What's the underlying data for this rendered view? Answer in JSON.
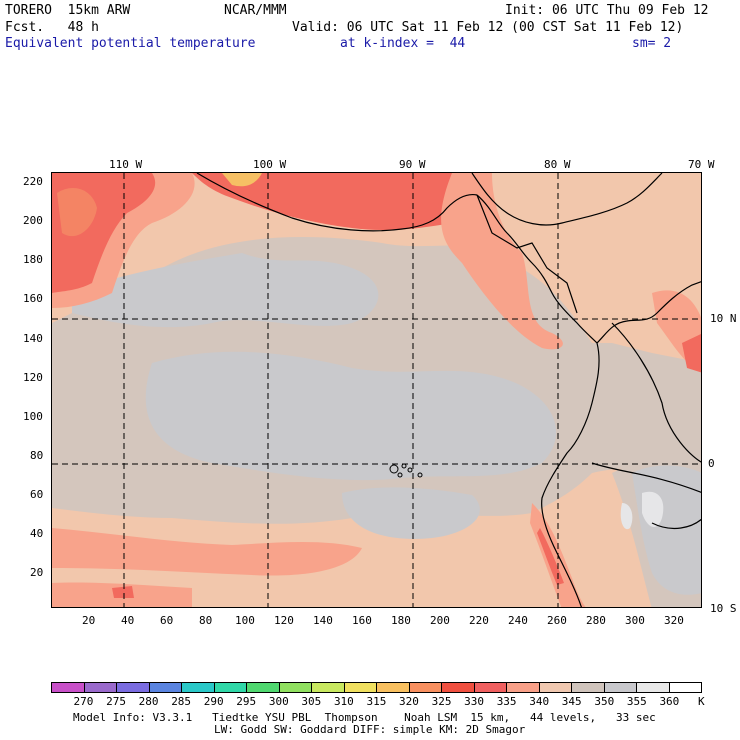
{
  "header": {
    "model": "TORERO  15km ARW",
    "org": "NCAR/MMM",
    "init": "Init: 06 UTC Thu 09 Feb 12",
    "fcst": "Fcst.   48 h",
    "valid": "Valid: 06 UTC Sat 11 Feb 12 (00 CST Sat 11 Feb 12)",
    "field": "Equivalent potential temperature",
    "level": "at k-index =  44",
    "smooth": "sm= 2"
  },
  "map": {
    "top_lon_labels": [
      "110 W",
      "100 W",
      "90 W",
      "80 W",
      "70 W"
    ],
    "right_lat_labels": [
      "10 N",
      "0",
      "10 S"
    ],
    "left_y_ticks": [
      "20",
      "40",
      "60",
      "80",
      "100",
      "120",
      "140",
      "160",
      "180",
      "200",
      "220"
    ],
    "bottom_x_ticks": [
      "20",
      "40",
      "60",
      "80",
      "100",
      "120",
      "140",
      "160",
      "180",
      "200",
      "220",
      "240",
      "260",
      "280",
      "300",
      "320"
    ]
  },
  "colorbar": {
    "labels": [
      "270",
      "275",
      "280",
      "285",
      "290",
      "295",
      "300",
      "305",
      "310",
      "315",
      "320",
      "325",
      "330",
      "335",
      "340",
      "345",
      "350",
      "355",
      "360",
      "K"
    ],
    "colors": [
      "#c850c8",
      "#9a6acc",
      "#7a6ce0",
      "#5a84e0",
      "#2ac8c8",
      "#30d8a8",
      "#50d870",
      "#90e060",
      "#c8e860",
      "#f0e060",
      "#f8c060",
      "#f89060",
      "#f05040",
      "#f06060",
      "#f8a088",
      "#f0c8b0",
      "#d0c4bc",
      "#c8c8cc",
      "#e8e8e8",
      "#ffffff"
    ]
  },
  "colors": {
    "c340": "#f2c7ac",
    "c345": "#d4c6bd",
    "c350": "#c9c9cc",
    "c335": "#f8a38b",
    "c330": "#f26a5e",
    "c325": "#f48464",
    "c320": "#f6c064",
    "c355": "#e6e6e8"
  },
  "footer": {
    "line1": "Model Info: V3.3.1   Tiedtke YSU PBL  Thompson    Noah LSM  15 km,   44 levels,   33 sec",
    "line2": "LW: Godd SW: Goddard DIFF: simple KM: 2D Smagor"
  }
}
